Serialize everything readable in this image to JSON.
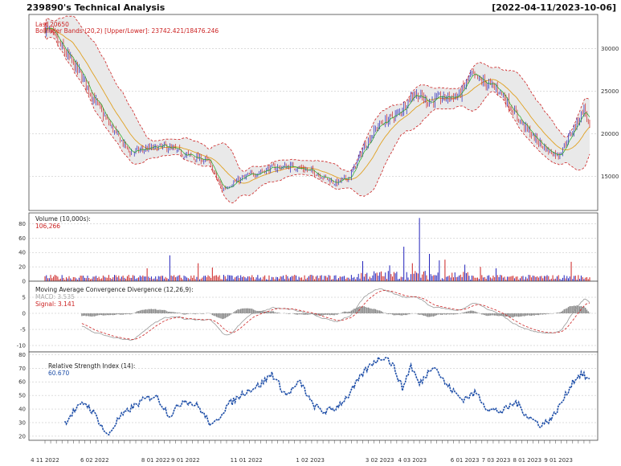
{
  "header": {
    "title": "239890's Technical Analysis",
    "date_range": "[2022-04-11/2023-10-06]"
  },
  "colors": {
    "up": "#2222bb",
    "down": "#cc2222",
    "ma": "#e0a020",
    "fast_ma": "#22aa22",
    "band": "#cc2222",
    "band_fill": "#e9e9e9",
    "rsi": "#1f4fa8",
    "macd_hist": "#888888",
    "signal": "#cc2222"
  },
  "chart_data": [
    {
      "type": "candlestick",
      "panel": "price",
      "legend": {
        "last": "Last 20650",
        "bbands": "Bollinger Bands (20,2) [Upper/Lower]: 23742.421/18476.246"
      },
      "y_ticks": [
        "30000",
        "25000",
        "20000",
        "15000"
      ],
      "y_values": [
        30000,
        25000,
        20000,
        15000
      ],
      "ylim": [
        11000,
        34000
      ],
      "x_labels": [
        "4 11 2022",
        "6 02 2022",
        "8 01 2022",
        "9 01 2022",
        "11 01 2022",
        "1 02 2023",
        "3 02 2023",
        "4 03 2023",
        "6 01 2023",
        "7 03 2023",
        "8 01 2023",
        "9 01 2023"
      ],
      "x_label_index": [
        0,
        35,
        78,
        99,
        142,
        187,
        236,
        259,
        296,
        318,
        340,
        362
      ],
      "n_bars": 385,
      "close_anchors": [
        [
          0,
          32600
        ],
        [
          10,
          30500
        ],
        [
          25,
          27000
        ],
        [
          40,
          22500
        ],
        [
          50,
          20000
        ],
        [
          60,
          17800
        ],
        [
          70,
          18200
        ],
        [
          85,
          18500
        ],
        [
          100,
          17500
        ],
        [
          115,
          16800
        ],
        [
          125,
          13500
        ],
        [
          132,
          14200
        ],
        [
          145,
          15200
        ],
        [
          160,
          16000
        ],
        [
          175,
          16200
        ],
        [
          190,
          15500
        ],
        [
          205,
          14200
        ],
        [
          215,
          15000
        ],
        [
          225,
          18500
        ],
        [
          235,
          21000
        ],
        [
          250,
          22500
        ],
        [
          260,
          24800
        ],
        [
          270,
          23800
        ],
        [
          280,
          24200
        ],
        [
          292,
          24500
        ],
        [
          300,
          26800
        ],
        [
          310,
          26000
        ],
        [
          320,
          25200
        ],
        [
          335,
          21500
        ],
        [
          345,
          19500
        ],
        [
          355,
          18000
        ],
        [
          362,
          17500
        ],
        [
          368,
          19200
        ],
        [
          374,
          21000
        ],
        [
          380,
          23000
        ],
        [
          384,
          20650
        ]
      ]
    },
    {
      "type": "bar",
      "panel": "volume",
      "legend": {
        "title": "Volume (10,000s):",
        "last": "106,266"
      },
      "y_ticks": [
        "80",
        "60",
        "40",
        "20",
        "0"
      ],
      "y_values": [
        80,
        60,
        40,
        20,
        0
      ],
      "ylim": [
        0,
        95
      ],
      "spikes": [
        [
          72,
          18
        ],
        [
          88,
          36
        ],
        [
          108,
          25
        ],
        [
          118,
          19
        ],
        [
          224,
          28
        ],
        [
          243,
          22
        ],
        [
          253,
          48
        ],
        [
          259,
          25
        ],
        [
          264,
          88
        ],
        [
          271,
          38
        ],
        [
          278,
          29
        ],
        [
          282,
          30
        ],
        [
          296,
          23
        ],
        [
          307,
          20
        ],
        [
          318,
          18
        ],
        [
          371,
          27
        ]
      ]
    },
    {
      "type": "macd",
      "panel": "macd",
      "legend": {
        "title": "Moving Average Convergence Divergence (12,26,9):",
        "macd": "MACD: 3.535",
        "signal": "Signal: 3.141"
      },
      "y_ticks": [
        "5",
        "0",
        "-5",
        "-10"
      ],
      "y_values": [
        5,
        0,
        -5,
        -10
      ],
      "ylim": [
        -12,
        10
      ]
    },
    {
      "type": "line",
      "panel": "rsi",
      "legend": {
        "title": "Relative Strength Index (14):",
        "last": "60.670"
      },
      "y_ticks": [
        "80",
        "70",
        "60",
        "50",
        "40",
        "30",
        "20"
      ],
      "y_values": [
        80,
        70,
        60,
        50,
        40,
        30,
        20
      ],
      "ylim": [
        17,
        82
      ],
      "anchors": [
        [
          14,
          30
        ],
        [
          20,
          38
        ],
        [
          28,
          45
        ],
        [
          36,
          35
        ],
        [
          44,
          20
        ],
        [
          52,
          33
        ],
        [
          60,
          40
        ],
        [
          70,
          47
        ],
        [
          78,
          50
        ],
        [
          88,
          35
        ],
        [
          98,
          47
        ],
        [
          108,
          42
        ],
        [
          118,
          27
        ],
        [
          128,
          42
        ],
        [
          140,
          52
        ],
        [
          152,
          58
        ],
        [
          160,
          66
        ],
        [
          170,
          50
        ],
        [
          180,
          60
        ],
        [
          188,
          44
        ],
        [
          196,
          38
        ],
        [
          204,
          40
        ],
        [
          214,
          50
        ],
        [
          224,
          66
        ],
        [
          232,
          75
        ],
        [
          240,
          79
        ],
        [
          246,
          71
        ],
        [
          252,
          55
        ],
        [
          258,
          72
        ],
        [
          264,
          58
        ],
        [
          274,
          73
        ],
        [
          282,
          59
        ],
        [
          294,
          47
        ],
        [
          304,
          52
        ],
        [
          312,
          40
        ],
        [
          322,
          38
        ],
        [
          332,
          45
        ],
        [
          340,
          35
        ],
        [
          350,
          28
        ],
        [
          358,
          34
        ],
        [
          366,
          48
        ],
        [
          372,
          60
        ],
        [
          378,
          66
        ],
        [
          384,
          61
        ]
      ]
    }
  ]
}
